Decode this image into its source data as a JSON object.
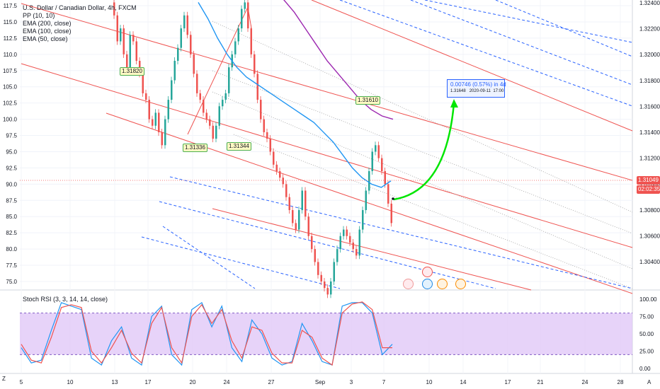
{
  "chart_data": [
    {
      "type": "line",
      "title": "U.S. Dollar / Canadian Dollar, 4h, FXCM",
      "y_left_ticks": [
        117.5,
        115.0,
        112.5,
        110.0,
        107.5,
        105.0,
        102.5,
        100.0,
        97.5,
        95.0,
        92.5,
        90.0,
        87.5,
        85.0,
        82.5,
        80.0,
        77.5,
        75.0
      ],
      "y_right_ticks": [
        "1.32400",
        "1.32200",
        "1.32000",
        "1.31800",
        "1.31600",
        "1.31400",
        "1.31200",
        "1.31000",
        "1.30800",
        "1.30600",
        "1.30400"
      ],
      "x_ticks": [
        "5",
        "10",
        "13",
        "17",
        "20",
        "24",
        "27",
        "Sep",
        "3",
        "7",
        "10",
        "14",
        "17",
        "21",
        "24",
        "28"
      ],
      "price_label": "1.31049",
      "countdown_label": "02:02:35",
      "indicators": [
        "PP (10, 10)",
        "EMA (200, close)",
        "EMA (100, close)",
        "EMA (50, close)"
      ],
      "legend_placement": "top-left",
      "annotations": [
        "1.31820",
        "1.31336",
        "1.31344",
        "1.31610"
      ],
      "projection": {
        "line1": "0.00746 (0.57%) in 4d",
        "line2_price": "1.31648",
        "line2_date": "2020-09-11",
        "line2_time": "17:00"
      },
      "series": [
        {
          "name": "EMA (50, close)",
          "color": "#2196f3",
          "values": [
            118,
            115.5,
            112.5,
            110,
            108,
            106.5,
            105.5,
            104.5,
            103.5,
            102.5,
            101.5,
            100.5,
            99.5,
            98,
            96.5,
            94.5,
            92.5,
            91,
            90,
            89.5,
            90.5
          ]
        },
        {
          "name": "EMA (100, close)",
          "color": "#9c27b0",
          "values": [
            118.5,
            116.5,
            114,
            111.5,
            109,
            107,
            105,
            103,
            101.5,
            100.5,
            100
          ]
        }
      ],
      "grid": true
    },
    {
      "type": "line",
      "title": "Stoch RSI (3, 3, 14, 14, close)",
      "y_ticks": [
        "100.00",
        "75.00",
        "50.00",
        "25.00",
        "0.00"
      ],
      "band": [
        20,
        80
      ],
      "series": [
        {
          "name": "K",
          "color": "#2196f3",
          "values": [
            30,
            8,
            12,
            55,
            95,
            90,
            85,
            15,
            5,
            40,
            60,
            15,
            5,
            75,
            90,
            20,
            5,
            85,
            95,
            60,
            90,
            30,
            10,
            70,
            50,
            15,
            5,
            10,
            65,
            40,
            10,
            5,
            90,
            95,
            95,
            80,
            20,
            35
          ]
        },
        {
          "name": "D",
          "color": "#ef5350",
          "values": [
            35,
            12,
            8,
            45,
            88,
            92,
            88,
            25,
            8,
            30,
            55,
            22,
            8,
            65,
            88,
            30,
            8,
            75,
            92,
            65,
            85,
            40,
            15,
            60,
            55,
            22,
            8,
            8,
            55,
            45,
            15,
            5,
            80,
            93,
            96,
            85,
            30,
            30
          ]
        }
      ]
    }
  ],
  "top_corner_label": "Z",
  "bottom_corner_label": "A"
}
